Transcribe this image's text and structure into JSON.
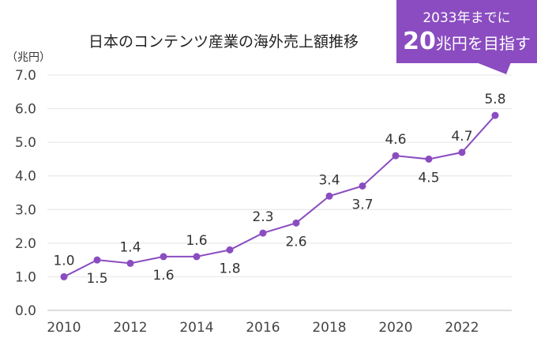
{
  "chart_data": {
    "type": "line",
    "title": "日本のコンテンツ産業の海外売上額推移",
    "ylabel": "（兆円）",
    "xlabel": "",
    "x": [
      2010,
      2011,
      2012,
      2013,
      2014,
      2015,
      2016,
      2017,
      2018,
      2019,
      2020,
      2021,
      2022,
      2023
    ],
    "values": [
      1.0,
      1.5,
      1.4,
      1.6,
      1.6,
      1.8,
      2.3,
      2.6,
      3.4,
      3.7,
      4.6,
      4.5,
      4.7,
      5.8
    ],
    "data_labels": [
      "1.0",
      "1.5",
      "1.4",
      "1.6",
      "1.6",
      "1.8",
      "2.3",
      "2.6",
      "3.4",
      "3.7",
      "4.6",
      "4.5",
      "4.7",
      "5.8"
    ],
    "label_position": [
      "above",
      "below",
      "above",
      "below",
      "above",
      "below",
      "above",
      "below",
      "above",
      "below",
      "above",
      "below",
      "above",
      "above"
    ],
    "xticks": [
      "2010",
      "2012",
      "2014",
      "2016",
      "2018",
      "2020",
      "2022"
    ],
    "yticks": [
      "0.0",
      "1.0",
      "2.0",
      "3.0",
      "4.0",
      "5.0",
      "6.0",
      "7.0"
    ],
    "ylim": [
      0,
      7
    ],
    "grid": true,
    "line_color": "#8a4cc0",
    "annotation": {
      "line1": "2033年までに",
      "big": "20",
      "rest": "兆円を目指す",
      "color": "#8a4cc0"
    }
  }
}
